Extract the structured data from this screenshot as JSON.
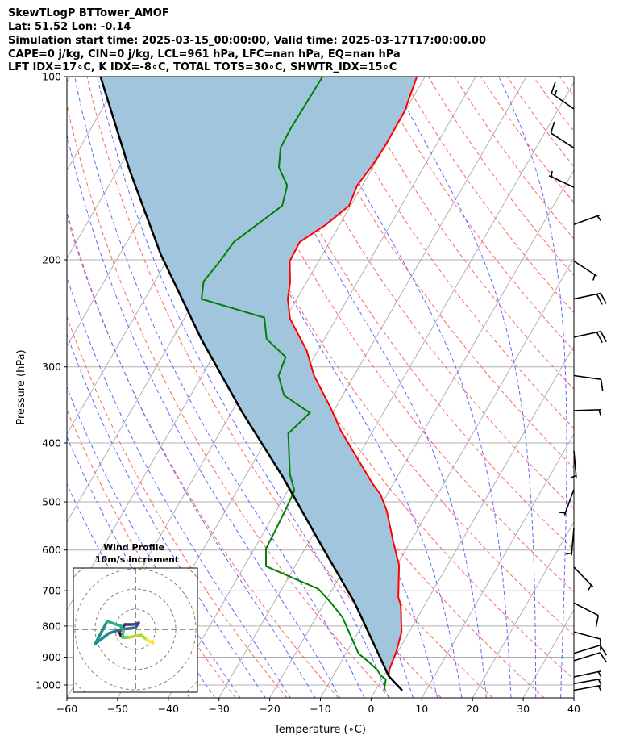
{
  "header": {
    "title": "SkewTLogP BTTower_AMOF",
    "location": "Lat: 51.52   Lon: -0.14",
    "times": "Simulation start time: 2025-03-15_00:00:00, Valid time: 2025-03-17T17:00:00.00",
    "indices1": "CAPE=0 j/kg, CIN=0 j/kg, LCL=961 hPa, LFC=nan hPa, EQ=nan hPa",
    "indices2": "LFT IDX=17∘C, K IDX=-8∘C, TOTAL TOTS=30∘C, SHWTR_IDX=15∘C"
  },
  "chart_data": {
    "type": "skewt",
    "xlabel": "Temperature (∘C)",
    "ylabel": "Pressure (hPa)",
    "xlim": [
      -60,
      40
    ],
    "ylim": [
      1050,
      100
    ],
    "xticks": [
      "−60",
      "−50",
      "−40",
      "−30",
      "−20",
      "−10",
      "0",
      "10",
      "20",
      "30",
      "40"
    ],
    "xtick_values": [
      -60,
      -50,
      -40,
      -30,
      -20,
      -10,
      0,
      10,
      20,
      30,
      40
    ],
    "yticks": [
      "100",
      "200",
      "300",
      "400",
      "500",
      "600",
      "700",
      "800",
      "900",
      "1000"
    ],
    "ytick_values": [
      100,
      200,
      300,
      400,
      500,
      600,
      700,
      800,
      900,
      1000
    ],
    "colors": {
      "temperature": "#ff0000",
      "dewpoint": "#008000",
      "parcel": "#000000",
      "cin_fill": "#a2c5de",
      "isotherm": "#b0b0b0",
      "dry_adiabat": "#ff6666",
      "moist_adiabat": "#6666ff"
    },
    "temperature": [
      [
        1021,
        5.3
      ],
      [
        967,
        1.0
      ],
      [
        944,
        0.4
      ],
      [
        880,
        -0.3
      ],
      [
        818,
        -1.5
      ],
      [
        739,
        -4.7
      ],
      [
        717,
        -6.1
      ],
      [
        635,
        -9.6
      ],
      [
        584,
        -13.2
      ],
      [
        517,
        -18.2
      ],
      [
        486,
        -21.3
      ],
      [
        468,
        -23.9
      ],
      [
        383,
        -36.2
      ],
      [
        350,
        -41.0
      ],
      [
        310,
        -47.9
      ],
      [
        282,
        -52.2
      ],
      [
        250,
        -59.1
      ],
      [
        232,
        -61.8
      ],
      [
        218,
        -63.2
      ],
      [
        201,
        -65.7
      ],
      [
        187,
        -65.9
      ],
      [
        175,
        -62.7
      ],
      [
        163,
        -60.3
      ],
      [
        151,
        -61.0
      ],
      [
        140,
        -60.3
      ],
      [
        130,
        -60.0
      ],
      [
        114,
        -60.1
      ],
      [
        100,
        -61.6
      ]
    ],
    "dewpoint": [
      [
        1021,
        1.7
      ],
      [
        979,
        0.8
      ],
      [
        964,
        -0.7
      ],
      [
        944,
        -2.0
      ],
      [
        915,
        -4.7
      ],
      [
        888,
        -7.5
      ],
      [
        774,
        -14.8
      ],
      [
        732,
        -18.8
      ],
      [
        695,
        -22.8
      ],
      [
        638,
        -35.7
      ],
      [
        597,
        -37.7
      ],
      [
        562,
        -37.9
      ],
      [
        512,
        -38.3
      ],
      [
        479,
        -38.7
      ],
      [
        451,
        -41.4
      ],
      [
        386,
        -46.4
      ],
      [
        357,
        -44.5
      ],
      [
        334,
        -51.6
      ],
      [
        310,
        -54.9
      ],
      [
        289,
        -55.6
      ],
      [
        270,
        -61.4
      ],
      [
        249,
        -64.3
      ],
      [
        232,
        -78.8
      ],
      [
        217,
        -80.4
      ],
      [
        202,
        -79.5
      ],
      [
        187,
        -78.9
      ],
      [
        163,
        -73.5
      ],
      [
        151,
        -74.8
      ],
      [
        141,
        -78.5
      ],
      [
        131,
        -80.4
      ],
      [
        122,
        -80.6
      ],
      [
        100,
        -80.2
      ]
    ],
    "parcel": [
      [
        1021,
        5.3
      ],
      [
        967,
        1.0
      ],
      [
        732,
        -14.1
      ],
      [
        593,
        -26.8
      ],
      [
        453,
        -42.8
      ],
      [
        355,
        -58.1
      ],
      [
        270,
        -74.3
      ],
      [
        196,
        -91.9
      ],
      [
        142,
        -107.8
      ],
      [
        100,
        -124.0
      ]
    ],
    "wind_barbs": [
      {
        "p": 113,
        "dir": 305,
        "kt": 15
      },
      {
        "p": 131,
        "dir": 303,
        "kt": 10
      },
      {
        "p": 152,
        "dir": 295,
        "kt": 5
      },
      {
        "p": 175,
        "dir": 70,
        "kt": 5
      },
      {
        "p": 201,
        "dir": 123,
        "kt": 5
      },
      {
        "p": 232,
        "dir": 78,
        "kt": 20
      },
      {
        "p": 268,
        "dir": 78,
        "kt": 20
      },
      {
        "p": 310,
        "dir": 98,
        "kt": 10
      },
      {
        "p": 354,
        "dir": 88,
        "kt": 5
      },
      {
        "p": 412,
        "dir": 175,
        "kt": 5
      },
      {
        "p": 477,
        "dir": 200,
        "kt": 5
      },
      {
        "p": 552,
        "dir": 185,
        "kt": 5
      },
      {
        "p": 640,
        "dir": 136,
        "kt": 5
      },
      {
        "p": 733,
        "dir": 117,
        "kt": 10
      },
      {
        "p": 818,
        "dir": 105,
        "kt": 10
      },
      {
        "p": 887,
        "dir": 73,
        "kt": 10
      },
      {
        "p": 912,
        "dir": 73,
        "kt": 10
      },
      {
        "p": 970,
        "dir": 78,
        "kt": 5
      },
      {
        "p": 995,
        "dir": 80,
        "kt": 5
      },
      {
        "p": 1020,
        "dir": 80,
        "kt": 5
      }
    ],
    "hodograph": {
      "title": "Wind Profile",
      "subtitle": "10m/s increment",
      "ring_increment_ms": 10,
      "uv": [
        [
          -7.2,
          -3.2
        ],
        [
          -8,
          -1.2
        ],
        [
          -5.2,
          2.4
        ],
        [
          -1.2,
          2.4
        ],
        [
          1.6,
          3.2
        ],
        [
          0,
          0.8
        ],
        [
          -7.2,
          0
        ],
        [
          -13.2,
          -2
        ],
        [
          -20,
          -7.2
        ],
        [
          -14,
          4
        ],
        [
          -7.2,
          1.6
        ],
        [
          -6,
          -0.8
        ],
        [
          -6.4,
          -4
        ],
        [
          -3.2,
          -4
        ],
        [
          2.8,
          -2.8
        ],
        [
          5.6,
          -5.2
        ],
        [
          8.8,
          -6.8
        ]
      ]
    }
  }
}
